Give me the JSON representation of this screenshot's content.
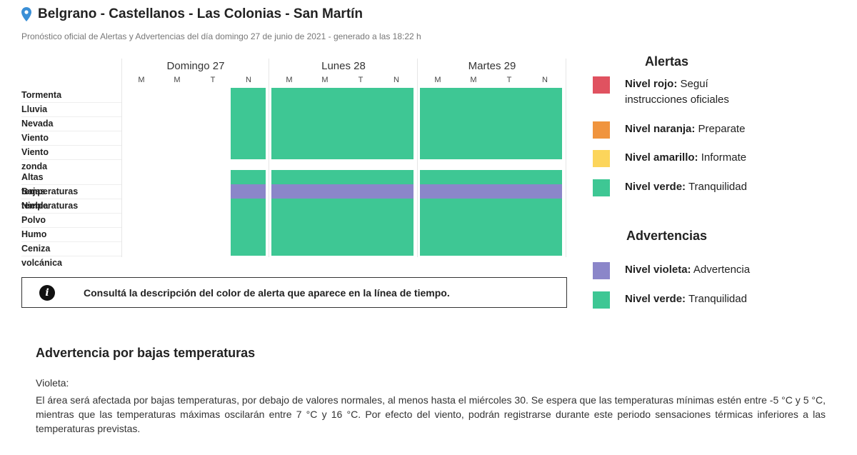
{
  "header": {
    "title": "Belgrano - Castellanos - Las Colonias - San Martín",
    "subtitle": "Pronóstico oficial de Alertas y Advertencias del día domingo 27 de junio de 2021 - generado a las 18:22 h"
  },
  "timeline": {
    "days": [
      "Domingo 27",
      "Lunes 28",
      "Martes 29"
    ],
    "periods": [
      "M",
      "M",
      "T",
      "N"
    ],
    "rows": [
      {
        "label": "Tormenta",
        "cells": [
          "none",
          "none",
          "none",
          "verde",
          "verde",
          "verde",
          "verde",
          "verde",
          "verde",
          "verde",
          "verde",
          "verde"
        ]
      },
      {
        "label": "Lluvia",
        "cells": [
          "none",
          "none",
          "none",
          "verde",
          "verde",
          "verde",
          "verde",
          "verde",
          "verde",
          "verde",
          "verde",
          "verde"
        ]
      },
      {
        "label": "Nevada",
        "cells": [
          "none",
          "none",
          "none",
          "verde",
          "verde",
          "verde",
          "verde",
          "verde",
          "verde",
          "verde",
          "verde",
          "verde"
        ]
      },
      {
        "label": "Viento",
        "cells": [
          "none",
          "none",
          "none",
          "verde",
          "verde",
          "verde",
          "verde",
          "verde",
          "verde",
          "verde",
          "verde",
          "verde"
        ]
      },
      {
        "label": "Viento zonda",
        "cells": [
          "none",
          "none",
          "none",
          "verde",
          "verde",
          "verde",
          "verde",
          "verde",
          "verde",
          "verde",
          "verde",
          "verde"
        ]
      },
      {
        "label": "Altas temperaturas",
        "cells": [
          "none",
          "none",
          "none",
          "verde",
          "verde",
          "verde",
          "verde",
          "verde",
          "verde",
          "verde",
          "verde",
          "verde"
        ]
      },
      {
        "label": "Bajas temperaturas",
        "cells": [
          "none",
          "none",
          "none",
          "violeta",
          "violeta",
          "violeta",
          "violeta",
          "violeta",
          "violeta",
          "violeta",
          "violeta",
          "violeta"
        ]
      },
      {
        "label": "Niebla",
        "cells": [
          "none",
          "none",
          "none",
          "verde",
          "verde",
          "verde",
          "verde",
          "verde",
          "verde",
          "verde",
          "verde",
          "verde"
        ]
      },
      {
        "label": "Polvo",
        "cells": [
          "none",
          "none",
          "none",
          "verde",
          "verde",
          "verde",
          "verde",
          "verde",
          "verde",
          "verde",
          "verde",
          "verde"
        ]
      },
      {
        "label": "Humo",
        "cells": [
          "none",
          "none",
          "none",
          "verde",
          "verde",
          "verde",
          "verde",
          "verde",
          "verde",
          "verde",
          "verde",
          "verde"
        ]
      },
      {
        "label": "Ceniza volcánica",
        "cells": [
          "none",
          "none",
          "none",
          "verde",
          "verde",
          "verde",
          "verde",
          "verde",
          "verde",
          "verde",
          "verde",
          "verde"
        ]
      }
    ]
  },
  "colors": {
    "rojo": "#e05260",
    "naranja": "#f0943e",
    "amarillo": "#fcd55b",
    "verde": "#3ec794",
    "violeta": "#8b86c9"
  },
  "info": {
    "icon": "info-icon",
    "text": "Consultá la descripción del color de alerta que aparece en la línea de tiempo."
  },
  "legend": {
    "alertas_title": "Alertas",
    "advertencias_title": "Advertencias",
    "alertas": [
      {
        "level": "Nivel rojo:",
        "desc": "Seguí instrucciones oficiales",
        "color": "#e05260"
      },
      {
        "level": "Nivel naranja:",
        "desc": "Preparate",
        "color": "#f0943e"
      },
      {
        "level": "Nivel amarillo:",
        "desc": "Informate",
        "color": "#fcd55b"
      },
      {
        "level": "Nivel verde:",
        "desc": "Tranquilidad",
        "color": "#3ec794"
      }
    ],
    "advertencias": [
      {
        "level": "Nivel violeta:",
        "desc": "Advertencia",
        "color": "#8b86c9"
      },
      {
        "level": "Nivel verde:",
        "desc": "Tranquilidad",
        "color": "#3ec794"
      }
    ]
  },
  "warning": {
    "title": "Advertencia por bajas temperaturas",
    "label": "Violeta:",
    "body": "El área será afectada por bajas temperaturas, por debajo de valores normales, al menos hasta el miércoles 30. Se espera que las temperaturas mínimas estén entre -5 °C y 5 °C, mientras que las temperaturas máximas oscilarán entre 7 °C y 16 °C. Por efecto del viento, podrán registrarse durante este periodo sensaciones térmicas inferiores a las temperaturas previstas."
  }
}
